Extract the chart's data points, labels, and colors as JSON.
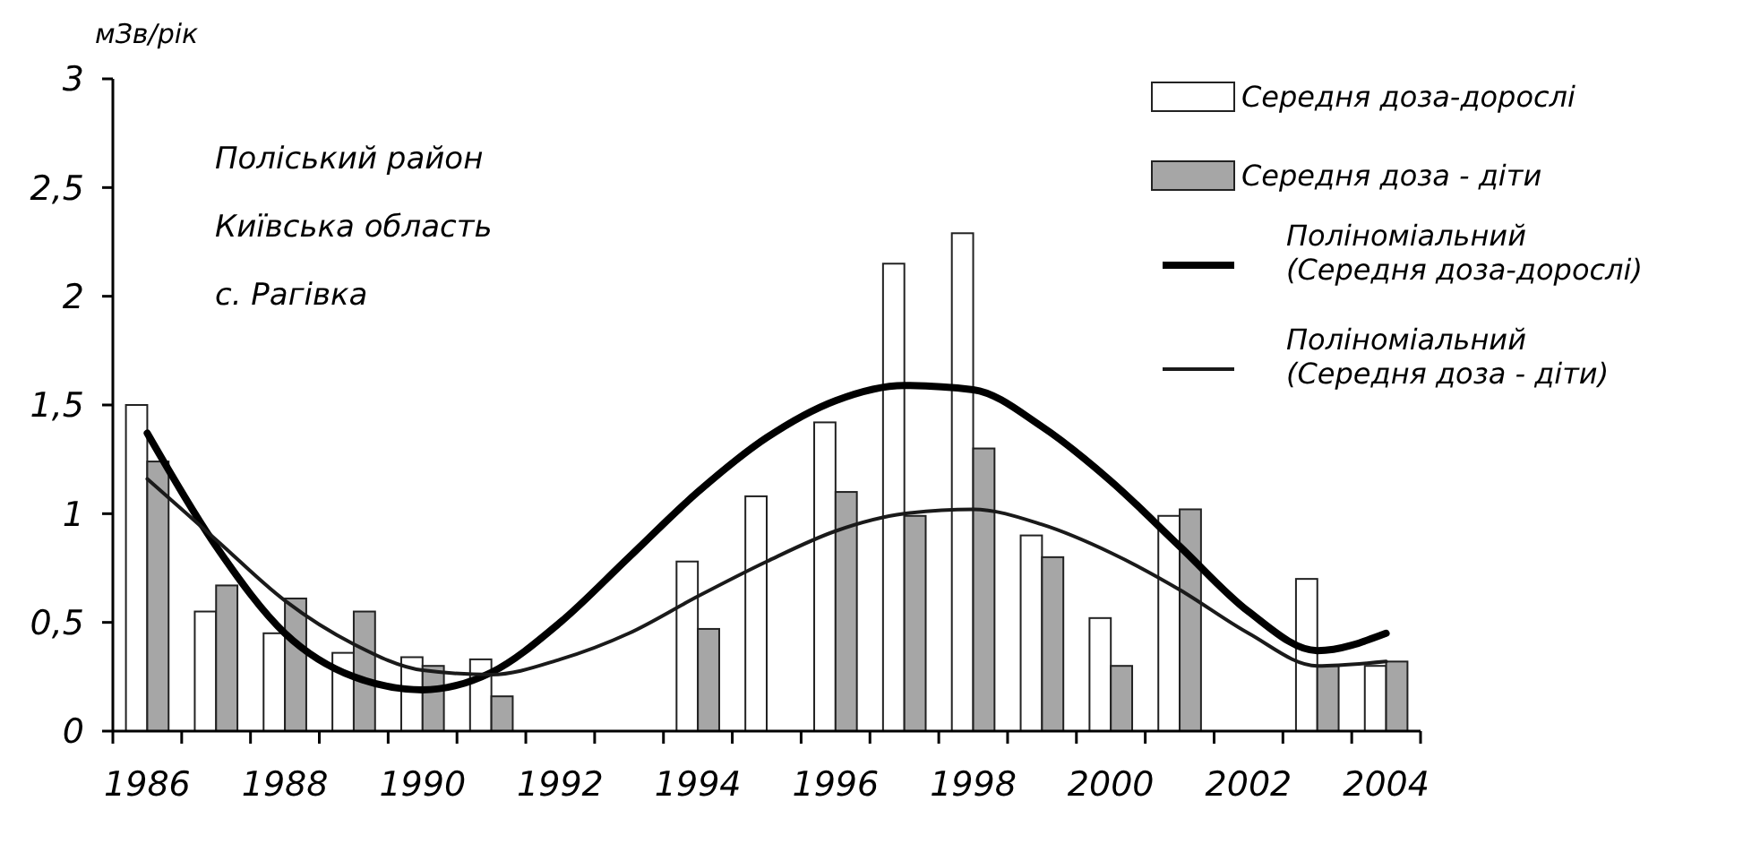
{
  "chart_data": {
    "type": "bar",
    "ylabel": "мЗв/рік",
    "categories": [
      "1986",
      null,
      "1988",
      null,
      "1990",
      null,
      "1992",
      null,
      "1994",
      null,
      "1996",
      null,
      "1998",
      null,
      "2000",
      null,
      "2002",
      null,
      "2004"
    ],
    "ylim": [
      0,
      3
    ],
    "yticks": [
      {
        "value": 0,
        "label": "0"
      },
      {
        "value": 0.5,
        "label": "0,5"
      },
      {
        "value": 1,
        "label": "1"
      },
      {
        "value": 1.5,
        "label": "1,5"
      },
      {
        "value": 2,
        "label": "2"
      },
      {
        "value": 2.5,
        "label": "2,5"
      },
      {
        "value": 3,
        "label": "3"
      }
    ],
    "legend": "top right",
    "grid": false,
    "annotations": [
      "Поліський район",
      "Київська область",
      "с. Рагівка"
    ],
    "series": [
      {
        "name": "Середня доза-дорослі",
        "color": "#ffffff",
        "values": [
          1.5,
          0.55,
          0.45,
          0.36,
          0.34,
          0.33,
          null,
          null,
          0.78,
          1.08,
          1.42,
          2.15,
          2.29,
          0.9,
          0.52,
          0.99,
          null,
          0.7,
          0.3
        ]
      },
      {
        "name": "Середня доза - діти",
        "color": "#a6a6a6",
        "values": [
          1.24,
          0.67,
          0.61,
          0.55,
          0.3,
          0.16,
          null,
          null,
          0.47,
          null,
          1.1,
          0.99,
          1.3,
          0.8,
          0.3,
          1.02,
          null,
          0.3,
          0.32
        ]
      },
      {
        "name": "Поліноміальний (Середня доза-дорослі)",
        "type": "line",
        "color": "#000000",
        "values": [
          1.37,
          0.85,
          0.45,
          0.25,
          0.19,
          0.27,
          0.5,
          0.8,
          1.1,
          1.35,
          1.52,
          1.59,
          1.57,
          1.4,
          1.15,
          0.85,
          0.55,
          0.37,
          0.45
        ]
      },
      {
        "name": "Поліноміальний (Середня доза - діти)",
        "type": "line",
        "color": "#1a1a1a",
        "values": [
          1.16,
          0.88,
          0.6,
          0.4,
          0.28,
          0.26,
          0.33,
          0.45,
          0.62,
          0.78,
          0.92,
          1.0,
          1.02,
          0.95,
          0.82,
          0.65,
          0.45,
          0.3,
          0.32
        ]
      }
    ]
  }
}
